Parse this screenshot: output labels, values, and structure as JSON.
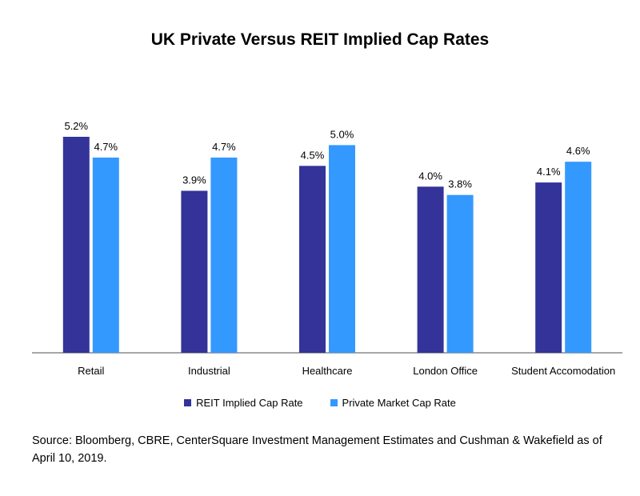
{
  "chart_data": {
    "type": "bar",
    "title": "UK Private Versus REIT Implied Cap Rates",
    "xlabel": "",
    "ylabel": "",
    "categories": [
      "Retail",
      "Industrial",
      "Healthcare",
      "London Office",
      "Student Accomodation"
    ],
    "series": [
      {
        "name": "REIT Implied Cap Rate",
        "color": "#33339a",
        "values": [
          5.2,
          3.9,
          4.5,
          4.0,
          4.1
        ],
        "labels": [
          "5.2%",
          "3.9%",
          "4.5%",
          "4.0%",
          "4.1%"
        ]
      },
      {
        "name": "Private Market Cap Rate",
        "color": "#3399ff",
        "values": [
          4.7,
          4.7,
          5.0,
          3.8,
          4.6
        ],
        "labels": [
          "4.7%",
          "4.7%",
          "5.0%",
          "3.8%",
          "4.6%"
        ]
      }
    ],
    "ylim": [
      0,
      5.2
    ],
    "grid": false,
    "legend_position": "bottom"
  },
  "source_note": "Source: Bloomberg, CBRE, CenterSquare Investment Management Estimates and Cushman & Wakefield as of April 10, 2019."
}
